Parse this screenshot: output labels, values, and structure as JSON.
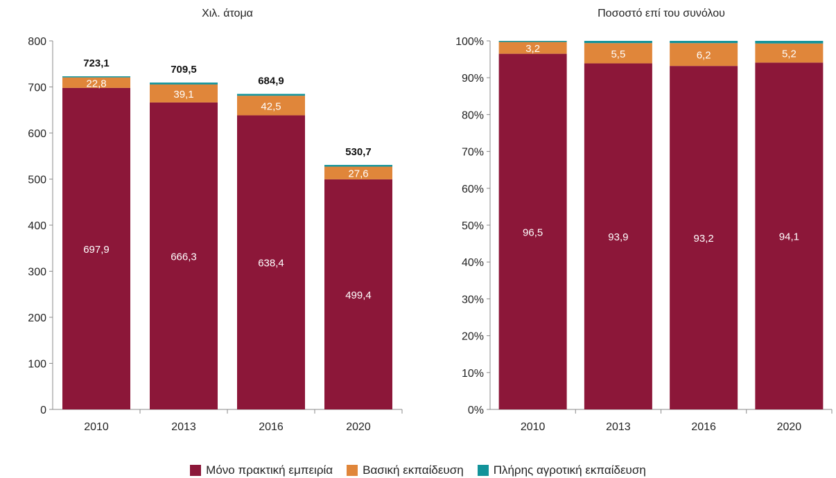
{
  "legend": [
    {
      "label": "Μόνο πρακτική εμπειρία",
      "color": "#8c1739"
    },
    {
      "label": "Βασική εκπαίδευση",
      "color": "#e0863a"
    },
    {
      "label": "Πλήρης αγροτική εκπαίδευση",
      "color": "#12939a"
    }
  ],
  "chart_data": [
    {
      "type": "bar",
      "stacked": true,
      "title": "Χιλ. άτομα",
      "categories": [
        "2010",
        "2013",
        "2016",
        "2020"
      ],
      "ylim": [
        0,
        800
      ],
      "yticks": [
        "0",
        "100",
        "200",
        "300",
        "400",
        "500",
        "600",
        "700",
        "800"
      ],
      "series": [
        {
          "name": "Μόνο πρακτική εμπειρία",
          "values": [
            697.9,
            666.3,
            638.4,
            499.4
          ],
          "labels": [
            "697,9",
            "666,3",
            "638,4",
            "499,4"
          ]
        },
        {
          "name": "Βασική εκπαίδευση",
          "values": [
            22.8,
            39.1,
            42.5,
            27.6
          ],
          "labels": [
            "22,8",
            "39,1",
            "42,5",
            "27,6"
          ]
        },
        {
          "name": "Πλήρης αγροτική εκπαίδευση",
          "values": [
            2.4,
            4.1,
            4.0,
            3.7
          ]
        }
      ],
      "totals": [
        "723,1",
        "709,5",
        "684,9",
        "530,7"
      ]
    },
    {
      "type": "bar",
      "stacked": true,
      "title": "Ποσοστό επί του συνόλου",
      "categories": [
        "2010",
        "2013",
        "2016",
        "2020"
      ],
      "ylim": [
        0,
        100
      ],
      "yticks": [
        "0%",
        "10%",
        "20%",
        "30%",
        "40%",
        "50%",
        "60%",
        "70%",
        "80%",
        "90%",
        "100%"
      ],
      "series": [
        {
          "name": "Μόνο πρακτική εμπειρία",
          "values": [
            96.5,
            93.9,
            93.2,
            94.1
          ],
          "labels": [
            "96,5",
            "93,9",
            "93,2",
            "94,1"
          ]
        },
        {
          "name": "Βασική εκπαίδευση",
          "values": [
            3.2,
            5.5,
            6.2,
            5.2
          ],
          "labels": [
            "3,2",
            "5,5",
            "6,2",
            "5,2"
          ]
        },
        {
          "name": "Πλήρης αγροτική εκπαίδευση",
          "values": [
            0.3,
            0.6,
            0.6,
            0.7
          ]
        }
      ]
    }
  ]
}
